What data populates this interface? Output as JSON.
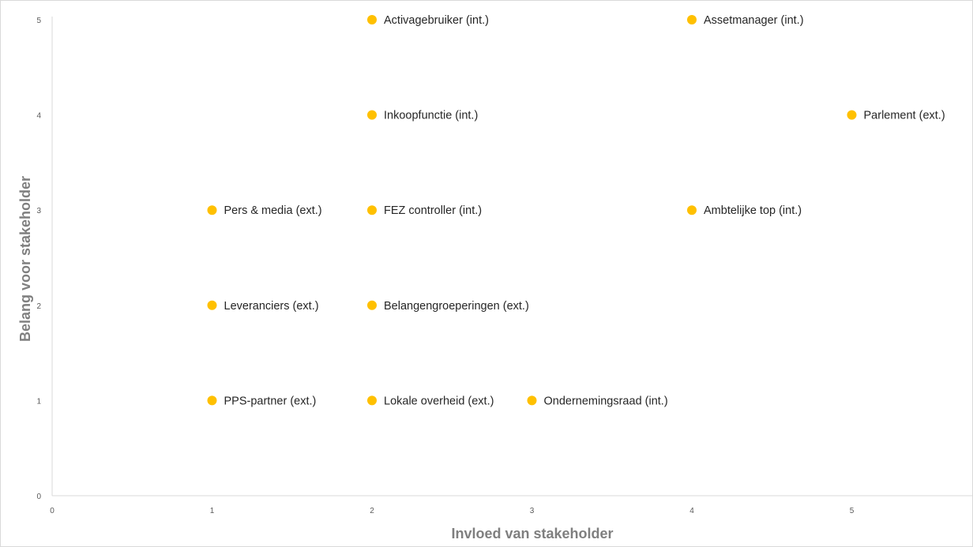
{
  "chart_data": {
    "type": "scatter",
    "title": "",
    "xlabel": "Invloed van stakeholder",
    "ylabel": "Belang voor stakeholder",
    "xlim": [
      0,
      5.8
    ],
    "ylim": [
      0,
      5
    ],
    "x_ticks": [
      "0",
      "1",
      "2",
      "3",
      "4",
      "5"
    ],
    "y_ticks": [
      "0",
      "1",
      "2",
      "3",
      "4",
      "5"
    ],
    "grid": false,
    "legend": "none",
    "marker_color": "#FFC000",
    "axis_color": "#d9d9d9",
    "points": [
      {
        "x": 2,
        "y": 5,
        "label": "Activagebruiker (int.)"
      },
      {
        "x": 4,
        "y": 5,
        "label": "Assetmanager (int.)"
      },
      {
        "x": 2,
        "y": 4,
        "label": "Inkoopfunctie (int.)"
      },
      {
        "x": 5,
        "y": 4,
        "label": "Parlement (ext.)"
      },
      {
        "x": 1,
        "y": 3,
        "label": "Pers & media (ext.)"
      },
      {
        "x": 2,
        "y": 3,
        "label": "FEZ controller (int.)"
      },
      {
        "x": 4,
        "y": 3,
        "label": "Ambtelijke top (int.)"
      },
      {
        "x": 1,
        "y": 2,
        "label": "Leveranciers (ext.)"
      },
      {
        "x": 2,
        "y": 2,
        "label": "Belangengroeperingen (ext.)"
      },
      {
        "x": 1,
        "y": 1,
        "label": "PPS-partner (ext.)"
      },
      {
        "x": 2,
        "y": 1,
        "label": "Lokale overheid (ext.)"
      },
      {
        "x": 3,
        "y": 1,
        "label": "Ondernemingsraad (int.)"
      }
    ]
  }
}
